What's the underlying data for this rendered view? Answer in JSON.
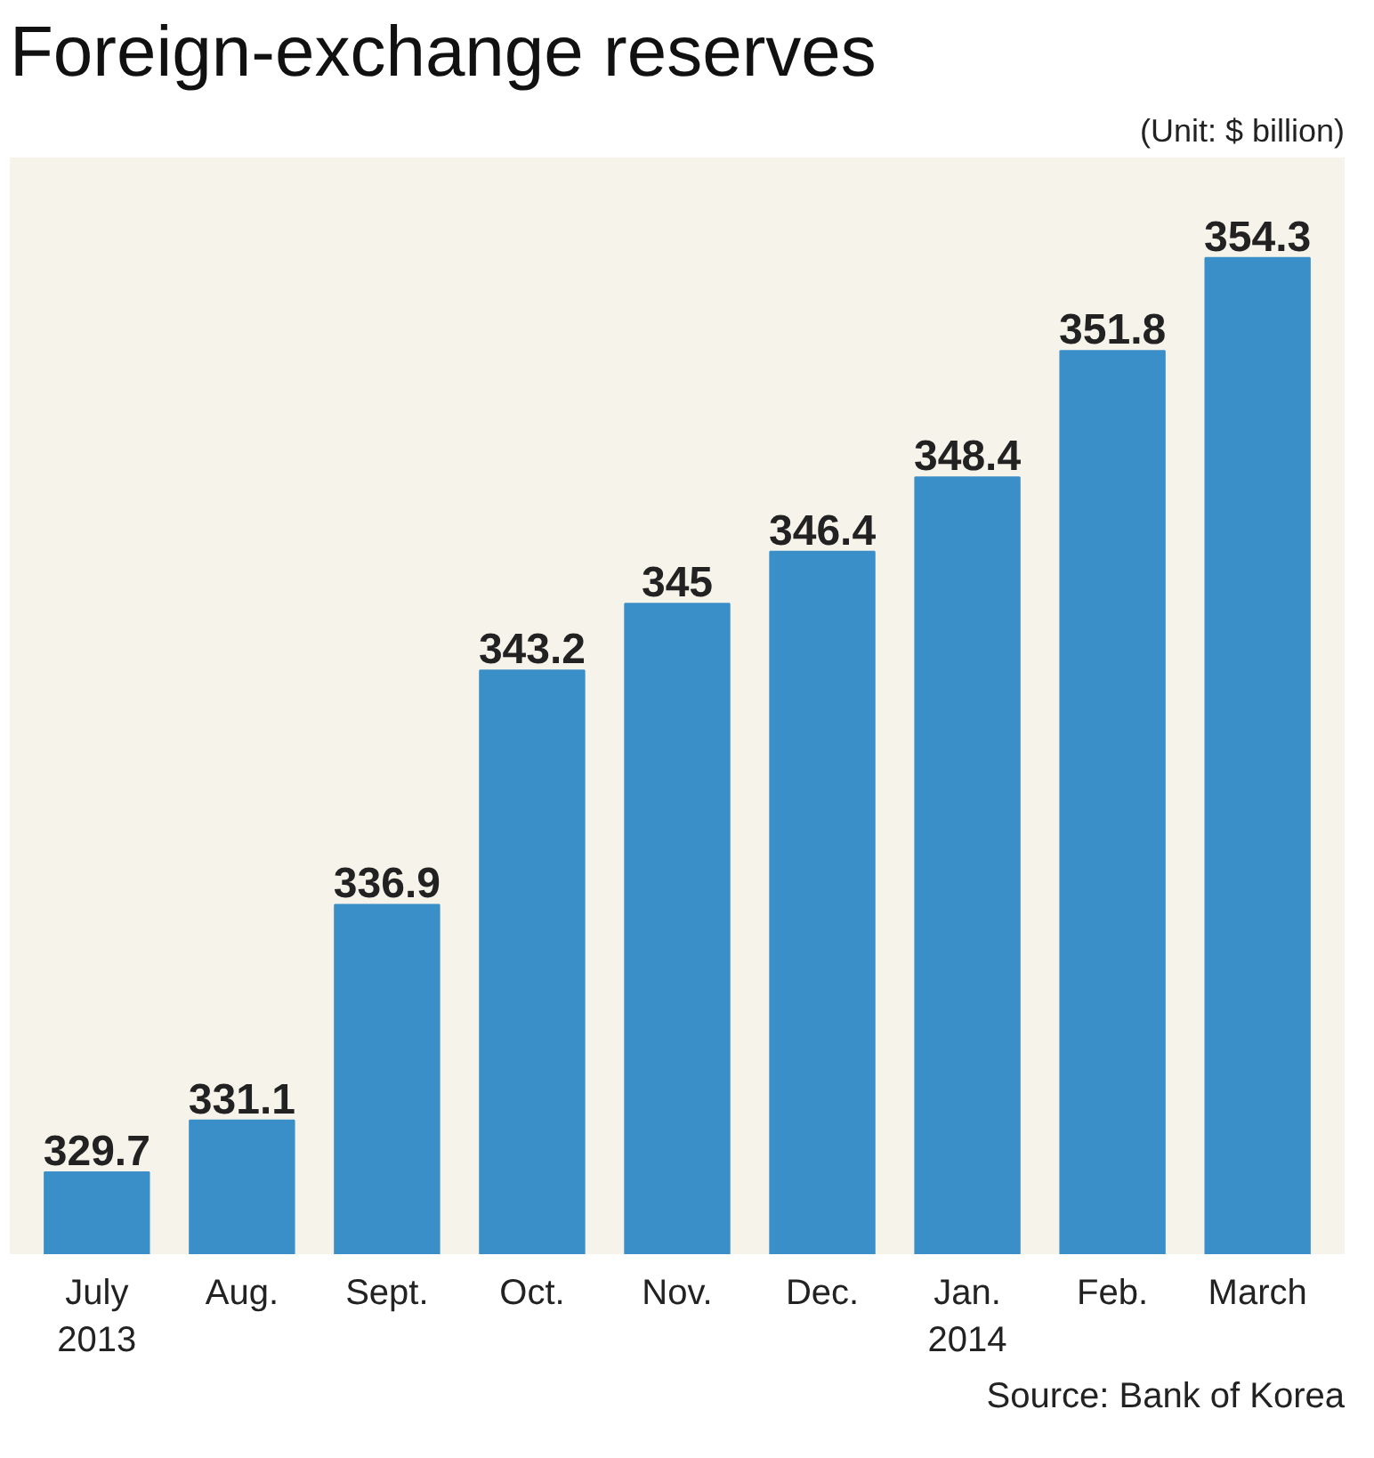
{
  "chart_data": {
    "type": "bar",
    "title": "Foreign-exchange reserves",
    "categories": [
      "July\n2013",
      "Aug.",
      "Sept.",
      "Oct.",
      "Nov.",
      "Dec.",
      "Jan.\n2014",
      "Feb.",
      "March"
    ],
    "values": [
      329.7,
      331.1,
      336.9,
      343.2,
      345,
      346.4,
      348.4,
      351.8,
      354.3
    ],
    "color": "#3b8fc9",
    "ylim": [
      327.5,
      357
    ],
    "data_labels": true,
    "grid": false,
    "annotations": [
      "(Unit: $ billion)",
      "Source: Bank of Korea"
    ]
  }
}
